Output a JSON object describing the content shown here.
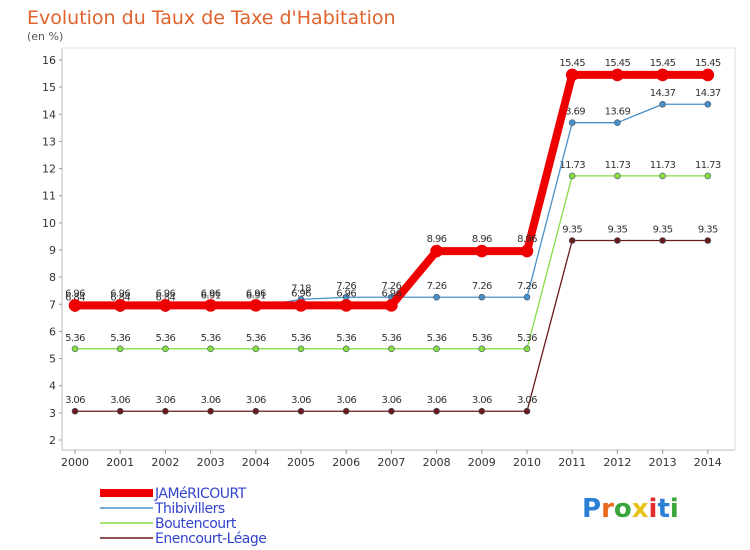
{
  "chart_data": {
    "type": "line",
    "title": "Evolution du Taux de Taxe d'Habitation",
    "subtitle": "(en %)",
    "xlabel": "",
    "ylabel": "",
    "categories": [
      "2000",
      "2001",
      "2002",
      "2003",
      "2004",
      "2005",
      "2006",
      "2007",
      "2008",
      "2009",
      "2010",
      "2011",
      "2012",
      "2013",
      "2014"
    ],
    "ylim": [
      2,
      16
    ],
    "yticks": [
      2,
      3,
      4,
      5,
      6,
      7,
      8,
      9,
      10,
      11,
      12,
      13,
      14,
      15,
      16
    ],
    "grid": false,
    "legend_position": "bottom-left",
    "series": [
      {
        "name": "Enencourt-Léage",
        "color": "#6b1a1a",
        "values": [
          3.06,
          3.06,
          3.06,
          3.06,
          3.06,
          3.06,
          3.06,
          3.06,
          3.06,
          3.06,
          3.06,
          9.35,
          9.35,
          9.35,
          9.35
        ],
        "labels": [
          "3.06",
          "3.06",
          "3.06",
          "3.06",
          "3.06",
          "3.06",
          "3.06",
          "3.06",
          "3.06",
          "3.06",
          "3.06",
          "9.35",
          "9.35",
          "9.35",
          "9.35"
        ]
      },
      {
        "name": "Boutencourt",
        "color": "#88dd44",
        "values": [
          5.36,
          5.36,
          5.36,
          5.36,
          5.36,
          5.36,
          5.36,
          5.36,
          5.36,
          5.36,
          5.36,
          11.73,
          11.73,
          11.73,
          11.73
        ],
        "labels": [
          "5.36",
          "5.36",
          "5.36",
          "5.36",
          "5.36",
          "5.36",
          "5.36",
          "5.36",
          "5.36",
          "5.36",
          "5.36",
          "11.73",
          "11.73",
          "11.73",
          "11.73"
        ]
      },
      {
        "name": "Thibivillers",
        "color": "#4a90c8",
        "values": [
          6.84,
          6.84,
          6.84,
          6.91,
          6.91,
          7.18,
          7.26,
          7.26,
          7.26,
          7.26,
          7.26,
          13.69,
          13.69,
          14.37,
          14.37
        ],
        "labels": [
          "6.84",
          "6.84",
          "6.84",
          "6.91",
          "6.91",
          "7.18",
          "7.26",
          "7.26",
          "7.26",
          "7.26",
          "7.26",
          "13.69",
          "13.69",
          "14.37",
          "14.37"
        ]
      },
      {
        "name": "JAMéRICOURT",
        "color": "#ee0000",
        "values": [
          6.96,
          6.96,
          6.96,
          6.96,
          6.96,
          6.96,
          6.96,
          6.96,
          8.96,
          8.96,
          8.96,
          15.45,
          15.45,
          15.45,
          15.45
        ],
        "labels": [
          "6.96",
          "6.96",
          "6.96",
          "6.96",
          "6.96",
          "6.96",
          "6.96",
          "6.96",
          "8.96",
          "8.96",
          "8.96",
          "15.45",
          "15.45",
          "15.45",
          "15.45"
        ]
      }
    ]
  },
  "legend": {
    "items": [
      {
        "label": "JAMéRICOURT",
        "color": "#ee0000",
        "text_color": "#3344cc"
      },
      {
        "label": "Thibivillers",
        "color": "#4a90c8",
        "text_color": "#3344cc"
      },
      {
        "label": "Boutencourt",
        "color": "#88dd44",
        "text_color": "#3344cc"
      },
      {
        "label": "Enencourt-Léage",
        "color": "#6b1a1a",
        "text_color": "#3344cc"
      }
    ]
  },
  "logo": {
    "text": "Proxiti",
    "letter_colors": [
      "#2b7fd4",
      "#e86a1a",
      "#3aa63a",
      "#e8c21a",
      "#e02b2b",
      "#2b7fd4",
      "#3aa63a"
    ]
  }
}
